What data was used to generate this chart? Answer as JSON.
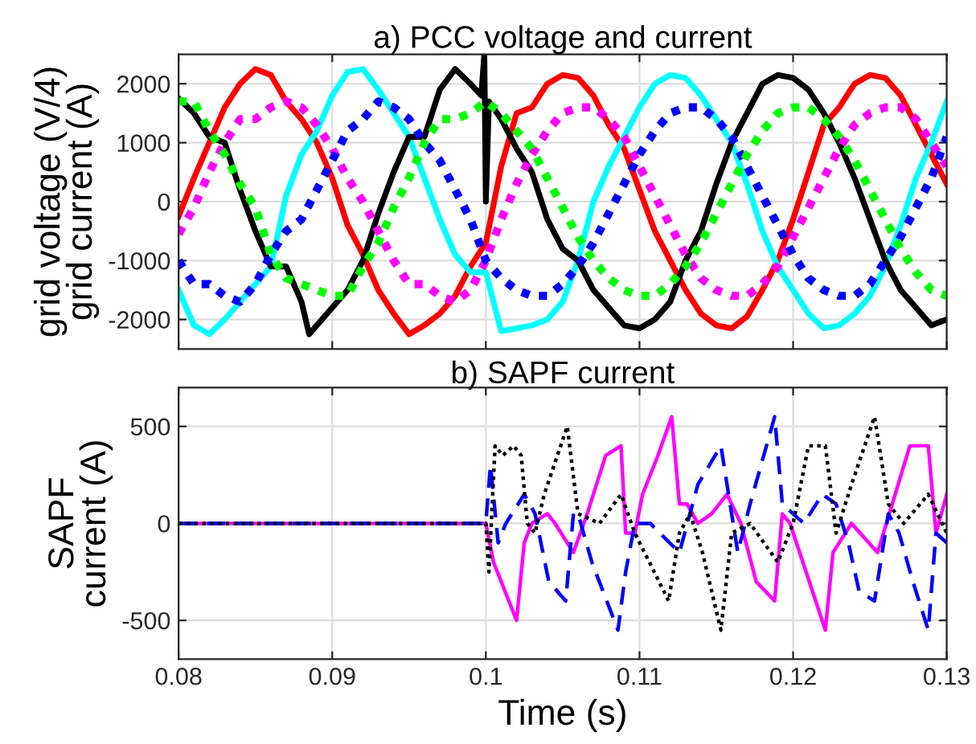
{
  "chart_data": [
    {
      "type": "line",
      "title": "a) PCC voltage and current",
      "ylabel": "grid voltage (V/4)\ngrid current (A)",
      "xlim": [
        0.08,
        0.13
      ],
      "xticks": [
        0.08,
        0.09,
        0.1,
        0.11,
        0.12,
        0.13
      ],
      "ylim": [
        -2500,
        2500
      ],
      "yticks": [
        -2000,
        -1000,
        0,
        1000,
        2000
      ],
      "tick_labels": "y",
      "grid": true,
      "x": [
        0.08,
        0.081,
        0.082,
        0.083,
        0.084,
        0.085,
        0.086,
        0.087,
        0.088,
        0.089,
        0.09,
        0.091,
        0.092,
        0.093,
        0.094,
        0.095,
        0.096,
        0.097,
        0.098,
        0.099,
        0.1,
        0.101,
        0.102,
        0.103,
        0.104,
        0.105,
        0.106,
        0.107,
        0.108,
        0.109,
        0.11,
        0.111,
        0.112,
        0.113,
        0.114,
        0.115,
        0.116,
        0.117,
        0.118,
        0.119,
        0.12,
        0.121,
        0.122,
        0.123,
        0.124,
        0.125,
        0.126,
        0.127,
        0.128,
        0.129,
        0.13
      ],
      "series": [
        {
          "color": "#ff0000",
          "line_style": "solid",
          "values": [
            -250,
            400,
            1000,
            1600,
            2000,
            2250,
            2150,
            1700,
            1400,
            1000,
            400,
            -400,
            -900,
            -1500,
            -1900,
            -2250,
            -2100,
            -1900,
            -1600,
            -1100,
            -700,
            600,
            1500,
            1600,
            2000,
            2150,
            2100,
            1800,
            1300,
            900,
            200,
            -500,
            -1000,
            -1500,
            -1900,
            -2100,
            -2150,
            -1950,
            -1500,
            -1000,
            -300,
            500,
            1300,
            1600,
            2000,
            2150,
            2100,
            1800,
            1300,
            800,
            300
          ]
        },
        {
          "color": "#00ffff",
          "line_style": "solid",
          "values": [
            -1500,
            -2100,
            -2250,
            -2000,
            -1700,
            -1400,
            -1100,
            100,
            800,
            1200,
            1800,
            2200,
            2250,
            1900,
            1500,
            1100,
            400,
            -300,
            -900,
            -1200,
            -1200,
            -2200,
            -2150,
            -2100,
            -2000,
            -1700,
            -1000,
            0,
            600,
            1100,
            1600,
            2000,
            2150,
            2100,
            1800,
            1400,
            1000,
            300,
            -500,
            -1100,
            -1500,
            -1900,
            -2150,
            -2100,
            -1900,
            -1600,
            -1100,
            -400,
            400,
            1000,
            1700
          ]
        },
        {
          "color": "#000000",
          "line_style": "solid",
          "x": [
            0.08,
            0.081,
            0.082,
            0.083,
            0.084,
            0.085,
            0.086,
            0.087,
            0.088,
            0.0885,
            0.089,
            0.09,
            0.091,
            0.092,
            0.093,
            0.094,
            0.095,
            0.096,
            0.097,
            0.098,
            0.099,
            0.0997,
            0.0999,
            0.1,
            0.1002,
            0.101,
            0.102,
            0.103,
            0.104,
            0.105,
            0.106,
            0.107,
            0.108,
            0.109,
            0.11,
            0.111,
            0.112,
            0.113,
            0.114,
            0.115,
            0.116,
            0.117,
            0.118,
            0.119,
            0.12,
            0.121,
            0.122,
            0.123,
            0.124,
            0.125,
            0.126,
            0.127,
            0.128,
            0.129,
            0.13
          ],
          "values": [
            1750,
            1500,
            1100,
            1000,
            200,
            -500,
            -1100,
            -1100,
            -1700,
            -2250,
            -2100,
            -1800,
            -1500,
            -1000,
            -200,
            500,
            1100,
            1100,
            1900,
            2250,
            2000,
            1800,
            2500,
            0,
            1700,
            1400,
            900,
            500,
            -300,
            -800,
            -1000,
            -1500,
            -1800,
            -2100,
            -2150,
            -2000,
            -1700,
            -1000,
            -500,
            300,
            1000,
            1500,
            2000,
            2150,
            2100,
            1900,
            1500,
            1000,
            400,
            -300,
            -1000,
            -1500,
            -1800,
            -2100,
            -2000
          ]
        },
        {
          "color": "#ff00ff",
          "line_style": "dotted",
          "values": [
            -550,
            -100,
            500,
            1000,
            1400,
            1400,
            1600,
            1700,
            1600,
            1300,
            900,
            400,
            0,
            -500,
            -1000,
            -1400,
            -1400,
            -1600,
            -1700,
            -1500,
            -1000,
            -300,
            300,
            800,
            1200,
            1500,
            1600,
            1600,
            1400,
            1100,
            600,
            100,
            -400,
            -900,
            -1300,
            -1500,
            -1600,
            -1600,
            -1400,
            -1100,
            -600,
            -100,
            400,
            900,
            1300,
            1500,
            1600,
            1600,
            1400,
            1000,
            600
          ]
        },
        {
          "color": "#0000ff",
          "line_style": "dotted",
          "values": [
            -1000,
            -1400,
            -1400,
            -1600,
            -1700,
            -1400,
            -900,
            -500,
            -300,
            200,
            700,
            1200,
            1400,
            1700,
            1600,
            1400,
            1000,
            700,
            200,
            -300,
            -1000,
            -1300,
            -1500,
            -1600,
            -1600,
            -1400,
            -1100,
            -700,
            -200,
            300,
            800,
            1200,
            1500,
            1600,
            1600,
            1400,
            1100,
            600,
            100,
            -400,
            -900,
            -1300,
            -1500,
            -1600,
            -1600,
            -1400,
            -1000,
            -600,
            -100,
            400,
            1100
          ]
        },
        {
          "color": "#00ff00",
          "line_style": "dotted",
          "values": [
            1700,
            1700,
            1200,
            800,
            300,
            -100,
            -900,
            -1300,
            -1400,
            -1500,
            -1600,
            -1600,
            -1100,
            -700,
            -100,
            400,
            1000,
            1400,
            1400,
            1500,
            1700,
            1500,
            1200,
            900,
            400,
            -100,
            -600,
            -1000,
            -1300,
            -1500,
            -1600,
            -1600,
            -1400,
            -1100,
            -700,
            -200,
            300,
            800,
            1200,
            1500,
            1600,
            1600,
            1400,
            1100,
            700,
            200,
            -300,
            -800,
            -1200,
            -1500,
            -1600
          ]
        }
      ]
    },
    {
      "type": "line",
      "title": "b) SAPF current",
      "xlabel": "Time (s)",
      "ylabel": "SAPF\ncurrent (A)",
      "xlim": [
        0.08,
        0.13
      ],
      "xticks": [
        0.08,
        0.09,
        0.1,
        0.11,
        0.12,
        0.13
      ],
      "ylim": [
        -700,
        700
      ],
      "yticks": [
        -500,
        0,
        500
      ],
      "grid": true,
      "series": [
        {
          "color": "#ff00ff",
          "line_style": "solid",
          "x": [
            0.08,
            0.1,
            0.1005,
            0.101,
            0.1015,
            0.102,
            0.1025,
            0.103,
            0.104,
            0.1045,
            0.1057,
            0.1066,
            0.1078,
            0.1088,
            0.1091,
            0.1097,
            0.1102,
            0.1112,
            0.1121,
            0.1126,
            0.1131,
            0.1138,
            0.1147,
            0.1157,
            0.1166,
            0.1176,
            0.1188,
            0.1193,
            0.1198,
            0.1221,
            0.1226,
            0.1238,
            0.1255,
            0.1276,
            0.1288,
            0.1293,
            0.13
          ],
          "values": [
            0,
            0,
            -200,
            -300,
            -400,
            -500,
            -100,
            0,
            50,
            0,
            -150,
            50,
            350,
            400,
            -50,
            -50,
            150,
            350,
            550,
            100,
            100,
            0,
            50,
            150,
            0,
            -300,
            -400,
            50,
            0,
            -550,
            -150,
            0,
            -150,
            400,
            400,
            -50,
            150
          ]
        },
        {
          "color": "#0000ff",
          "line_style": "dashed",
          "x": [
            0.08,
            0.1,
            0.1003,
            0.1008,
            0.1013,
            0.1025,
            0.1032,
            0.1041,
            0.1052,
            0.1057,
            0.106,
            0.1069,
            0.1086,
            0.1091,
            0.1097,
            0.1107,
            0.1126,
            0.1138,
            0.1153,
            0.1164,
            0.1172,
            0.1188,
            0.1193,
            0.1207,
            0.1219,
            0.1228,
            0.1236,
            0.1243,
            0.1253,
            0.1262,
            0.1269,
            0.1278,
            0.1288,
            0.1293,
            0.13
          ],
          "values": [
            0,
            0,
            300,
            -100,
            0,
            150,
            50,
            -300,
            -400,
            50,
            50,
            -200,
            -550,
            -250,
            0,
            0,
            -150,
            200,
            400,
            -150,
            100,
            550,
            100,
            0,
            150,
            100,
            -100,
            -350,
            -400,
            50,
            -50,
            -300,
            -550,
            -50,
            -100
          ]
        },
        {
          "color": "#000000",
          "line_style": "dotted",
          "x": [
            0.08,
            0.1,
            0.1002,
            0.1006,
            0.1011,
            0.1018,
            0.1023,
            0.1027,
            0.1032,
            0.1038,
            0.1053,
            0.106,
            0.1074,
            0.1088,
            0.1097,
            0.1119,
            0.1126,
            0.1133,
            0.1141,
            0.1153,
            0.116,
            0.1172,
            0.119,
            0.12,
            0.121,
            0.1221,
            0.1228,
            0.1238,
            0.1253,
            0.1262,
            0.1272,
            0.1288,
            0.13
          ],
          "values": [
            0,
            0,
            -250,
            400,
            350,
            400,
            350,
            0,
            -50,
            150,
            500,
            50,
            0,
            150,
            -50,
            -400,
            -50,
            50,
            -150,
            -550,
            -50,
            0,
            -200,
            0,
            400,
            400,
            -50,
            200,
            550,
            100,
            0,
            150,
            -50
          ]
        }
      ]
    }
  ]
}
